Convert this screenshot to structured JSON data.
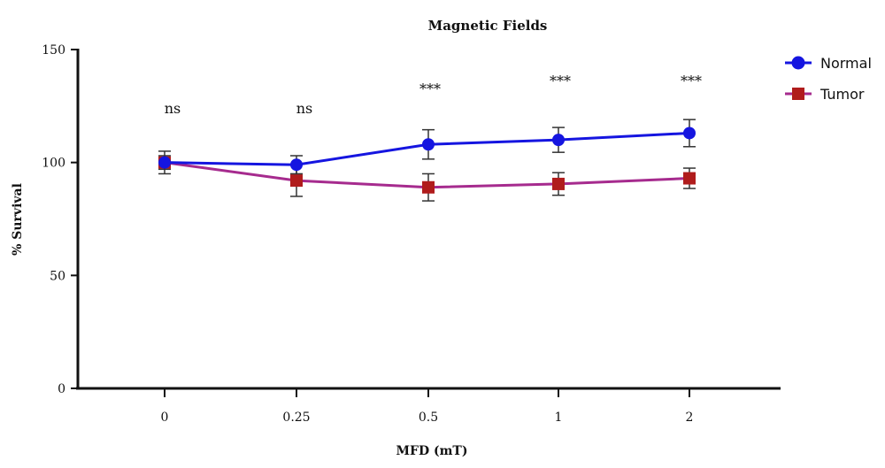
{
  "chart_data": {
    "type": "line",
    "title": "Magnetic Fields",
    "xlabel": "MFD (mT)",
    "ylabel": "% Survival",
    "categories": [
      "0",
      "0.25",
      "0.5",
      "1",
      "2"
    ],
    "ylim": [
      0,
      150
    ],
    "yticks": [
      "0",
      "50",
      "100",
      "150"
    ],
    "series": [
      {
        "name": "Normal",
        "color": "#1515e0",
        "marker": "circle",
        "values": [
          100,
          99,
          108,
          110,
          113
        ],
        "errors": [
          5,
          4,
          6.5,
          5.5,
          6
        ]
      },
      {
        "name": "Tumor",
        "color": "#a62b8e",
        "marker_color": "#b01c1c",
        "marker": "square",
        "values": [
          100,
          92,
          89,
          90.5,
          93
        ],
        "errors": [
          3,
          7,
          6,
          5,
          4.5
        ]
      }
    ],
    "annotations": [
      "ns",
      "ns",
      "***",
      "***",
      "***"
    ],
    "legend_position": "top-right",
    "grid": false
  }
}
